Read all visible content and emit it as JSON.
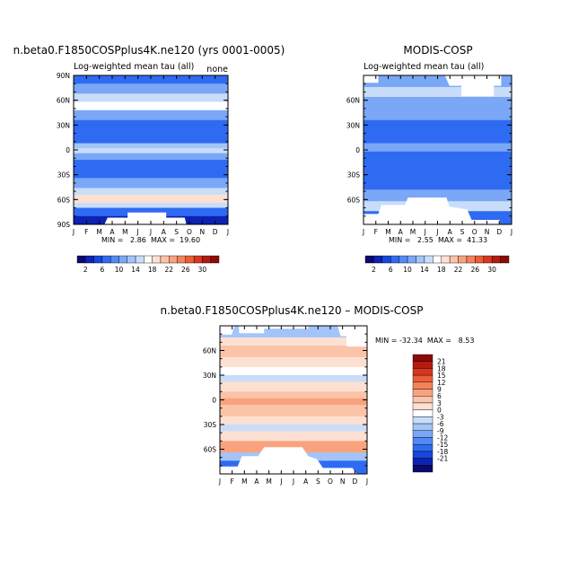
{
  "chart_data": [
    {
      "type": "heatmap",
      "title": "n.beta0.F1850COSPplus4K.ne120 (yrs 0001-0005)",
      "subtitle": "Log-weighted mean tau (all)",
      "corner_label": "none",
      "x_tick_labels": [
        "J",
        "F",
        "M",
        "A",
        "M",
        "J",
        "J",
        "A",
        "S",
        "O",
        "N",
        "D",
        "J"
      ],
      "y_tick_labels": [
        "90N",
        "60N",
        "30N",
        "0",
        "30S",
        "60S",
        "90S"
      ],
      "y_tick_values": [
        90,
        60,
        30,
        0,
        -30,
        -60,
        -90
      ],
      "ylim": [
        -90,
        90
      ],
      "stats_text": "MIN =   2.86  MAX =  19.60",
      "min": 2.86,
      "max": 19.6,
      "bands": [
        {
          "lat_from": 90,
          "lat_to": 80,
          "value": 6
        },
        {
          "lat_from": 80,
          "lat_to": 68,
          "value": 10
        },
        {
          "lat_from": 68,
          "lat_to": 58,
          "value": 14
        },
        {
          "lat_from": 58,
          "lat_to": 48,
          "value": 16
        },
        {
          "lat_from": 48,
          "lat_to": 36,
          "value": 10
        },
        {
          "lat_from": 36,
          "lat_to": 18,
          "value": 6
        },
        {
          "lat_from": 18,
          "lat_to": 8,
          "value": 6
        },
        {
          "lat_from": 8,
          "lat_to": 2,
          "value": 12
        },
        {
          "lat_from": 2,
          "lat_to": -4,
          "value": 14
        },
        {
          "lat_from": -4,
          "lat_to": -12,
          "value": 10
        },
        {
          "lat_from": -12,
          "lat_to": -34,
          "value": 6
        },
        {
          "lat_from": -34,
          "lat_to": -46,
          "value": 10
        },
        {
          "lat_from": -46,
          "lat_to": -54,
          "value": 14
        },
        {
          "lat_from": -54,
          "lat_to": -64,
          "value": 18
        },
        {
          "lat_from": -64,
          "lat_to": -70,
          "value": 14
        },
        {
          "lat_from": -70,
          "lat_to": -80,
          "value": 6
        },
        {
          "lat_from": -80,
          "lat_to": -90,
          "value": 2
        }
      ]
    },
    {
      "type": "heatmap",
      "title": "MODIS-COSP",
      "subtitle": "Log-weighted mean tau (all)",
      "x_tick_labels": [
        "J",
        "F",
        "M",
        "A",
        "M",
        "J",
        "J",
        "A",
        "S",
        "O",
        "N",
        "D",
        "J"
      ],
      "y_tick_labels": [
        "60N",
        "30N",
        "0",
        "30S",
        "60S"
      ],
      "y_tick_values": [
        60,
        30,
        0,
        -30,
        -60
      ],
      "ylim": [
        -90,
        90
      ],
      "stats_text": "MIN =   2.55  MAX =  41.33",
      "min": 2.55,
      "max": 41.33,
      "bands": [
        {
          "lat_from": 90,
          "lat_to": 76,
          "value": 10
        },
        {
          "lat_from": 76,
          "lat_to": 64,
          "value": 14
        },
        {
          "lat_from": 64,
          "lat_to": 50,
          "value": 10
        },
        {
          "lat_from": 50,
          "lat_to": 36,
          "value": 10
        },
        {
          "lat_from": 36,
          "lat_to": 18,
          "value": 6
        },
        {
          "lat_from": 18,
          "lat_to": 8,
          "value": 6
        },
        {
          "lat_from": 8,
          "lat_to": -2,
          "value": 10
        },
        {
          "lat_from": -2,
          "lat_to": -34,
          "value": 6
        },
        {
          "lat_from": -34,
          "lat_to": -48,
          "value": 6
        },
        {
          "lat_from": -48,
          "lat_to": -62,
          "value": 10
        },
        {
          "lat_from": -62,
          "lat_to": -74,
          "value": 14
        },
        {
          "lat_from": -74,
          "lat_to": -90,
          "value": 6
        }
      ]
    },
    {
      "type": "heatmap",
      "title": "n.beta0.F1850COSPplus4K.ne120 – MODIS-COSP",
      "x_tick_labels": [
        "J",
        "F",
        "M",
        "A",
        "M",
        "J",
        "J",
        "A",
        "S",
        "O",
        "N",
        "D",
        "J"
      ],
      "y_tick_labels": [
        "60N",
        "30N",
        "0",
        "30S",
        "60S"
      ],
      "y_tick_values": [
        60,
        30,
        0,
        -30,
        -60
      ],
      "ylim": [
        -90,
        90
      ],
      "stats_text": "MIN = -32.34  MAX =   8.53",
      "min": -32.34,
      "max": 8.53,
      "bands": [
        {
          "lat_from": 90,
          "lat_to": 76,
          "value": -6
        },
        {
          "lat_from": 76,
          "lat_to": 66,
          "value": 3
        },
        {
          "lat_from": 66,
          "lat_to": 52,
          "value": 6
        },
        {
          "lat_from": 52,
          "lat_to": 40,
          "value": 3
        },
        {
          "lat_from": 40,
          "lat_to": 30,
          "value": 0
        },
        {
          "lat_from": 30,
          "lat_to": 22,
          "value": -3
        },
        {
          "lat_from": 22,
          "lat_to": 10,
          "value": 3
        },
        {
          "lat_from": 10,
          "lat_to": 2,
          "value": 6
        },
        {
          "lat_from": 2,
          "lat_to": -6,
          "value": 9
        },
        {
          "lat_from": -6,
          "lat_to": -20,
          "value": 6
        },
        {
          "lat_from": -20,
          "lat_to": -30,
          "value": 3
        },
        {
          "lat_from": -30,
          "lat_to": -38,
          "value": -3
        },
        {
          "lat_from": -38,
          "lat_to": -50,
          "value": 3
        },
        {
          "lat_from": -50,
          "lat_to": -64,
          "value": 9
        },
        {
          "lat_from": -64,
          "lat_to": -74,
          "value": -6
        },
        {
          "lat_from": -74,
          "lat_to": -90,
          "value": -15
        }
      ]
    }
  ],
  "colorbar_abs": {
    "labels": [
      "2",
      "6",
      "10",
      "14",
      "18",
      "22",
      "26",
      "30"
    ],
    "colors": [
      "#0a0a6e",
      "#0d22b3",
      "#1845dc",
      "#2f6bf2",
      "#5289f4",
      "#7aa7f6",
      "#a3c4f8",
      "#c8ddf9",
      "#ffffff",
      "#fde0d2",
      "#fbc3a8",
      "#f8a37e",
      "#f4835a",
      "#ec5d39",
      "#d8361f",
      "#b51a10",
      "#8c0a08"
    ]
  },
  "colorbar_diff": {
    "labels": [
      "21",
      "18",
      "15",
      "12",
      "9",
      "6",
      "3",
      "0",
      "-3",
      "-6",
      "-9",
      "-12",
      "-15",
      "-18",
      "-21"
    ],
    "colors": [
      "#8c0a08",
      "#b51a10",
      "#d8361f",
      "#ec5d39",
      "#f4835a",
      "#f8a37e",
      "#fbc3a8",
      "#fde0d2",
      "#ffffff",
      "#c8ddf9",
      "#a3c4f8",
      "#7aa7f6",
      "#5289f4",
      "#2f6bf2",
      "#1845dc",
      "#0d22b3",
      "#0a0a6e"
    ]
  }
}
